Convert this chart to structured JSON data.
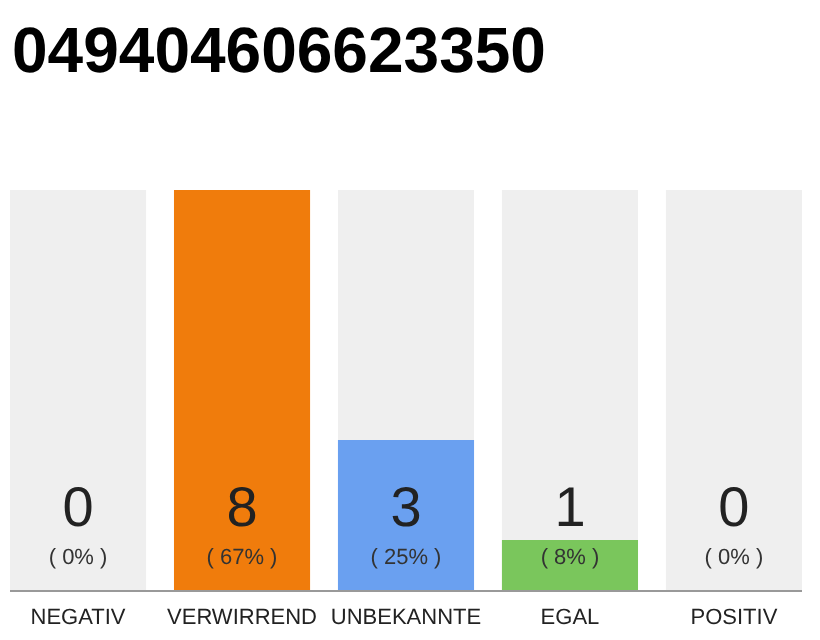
{
  "chart_data": {
    "type": "bar",
    "title": "049404606623350",
    "categories": [
      "NEGATIV",
      "VERWIRREND",
      "UNBEKANNTE",
      "EGAL",
      "POSITIV"
    ],
    "values": [
      0,
      8,
      3,
      1,
      0
    ],
    "colors": [
      "#f07c0c",
      "#f07c0c",
      "#6aa0f0",
      "#7ac65c",
      "#f07c0c"
    ],
    "value_labels": [
      "0",
      "8",
      "3",
      "1",
      "0"
    ],
    "annotations": [
      {
        "text": "( 0% )",
        "x": "NEGATIV",
        "y": 0
      },
      {
        "text": "( 67% )",
        "x": "VERWIRREND",
        "y": 0
      },
      {
        "text": "( 25% )",
        "x": "UNBEKANNTE",
        "y": 0
      },
      {
        "text": "( 8% )",
        "x": "EGAL",
        "y": 0
      },
      {
        "text": "( 0% )",
        "x": "POSITIV",
        "y": 0
      }
    ],
    "bands": [
      {
        "axis": "x",
        "from": "NEGATIV",
        "to": "NEGATIV",
        "color": "#efefef"
      },
      {
        "axis": "x",
        "from": "UNBEKANNTE",
        "to": "UNBEKANNTE",
        "color": "#efefef"
      },
      {
        "axis": "x",
        "from": "EGAL",
        "to": "EGAL",
        "color": "#efefef"
      },
      {
        "axis": "x",
        "from": "POSITIV",
        "to": "POSITIV",
        "color": "#efefef"
      }
    ]
  }
}
